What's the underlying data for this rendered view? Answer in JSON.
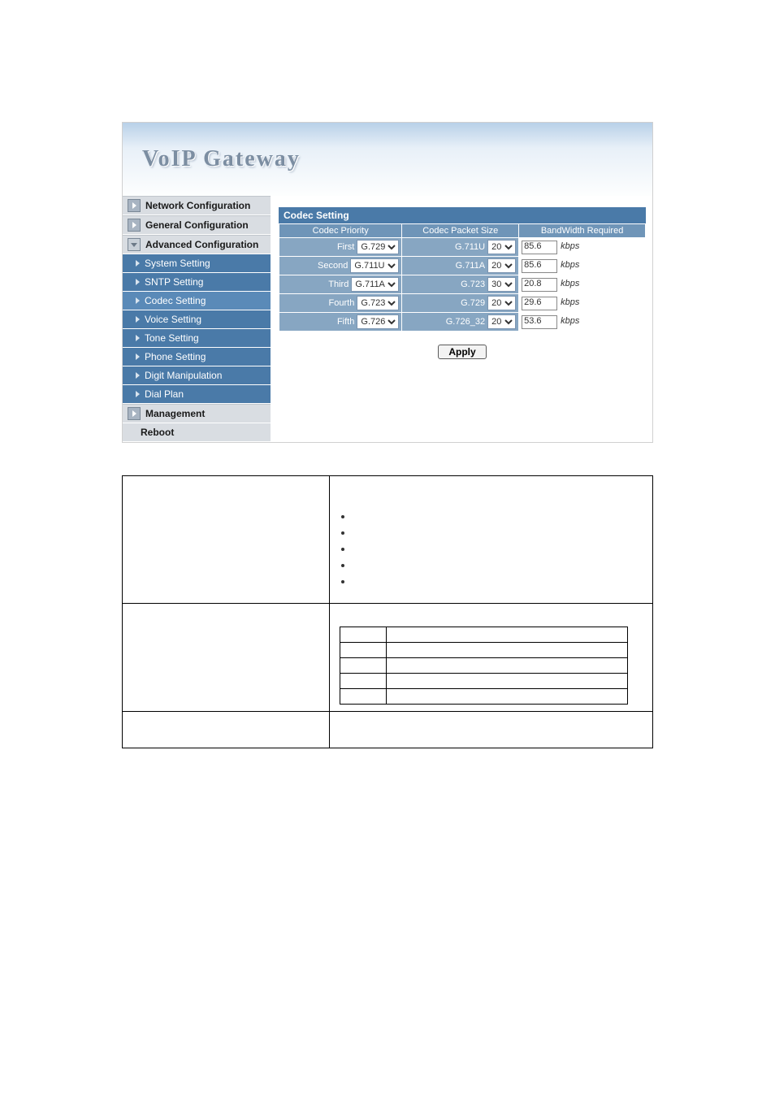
{
  "banner": {
    "title": "VoIP  Gateway"
  },
  "sidebar": {
    "top": [
      {
        "label": "Network Configuration",
        "open": false
      },
      {
        "label": "General Configuration",
        "open": false
      },
      {
        "label": "Advanced Configuration",
        "open": true
      }
    ],
    "subs": [
      {
        "label": "System Setting",
        "active": false
      },
      {
        "label": "SNTP Setting",
        "active": false
      },
      {
        "label": "Codec Setting",
        "active": true
      },
      {
        "label": "Voice Setting",
        "active": false
      },
      {
        "label": "Tone Setting",
        "active": false
      },
      {
        "label": "Phone Setting",
        "active": false
      },
      {
        "label": "Digit Manipulation",
        "active": false
      },
      {
        "label": "Dial Plan",
        "active": false
      }
    ],
    "bottom": [
      {
        "label": "Management",
        "hasIcon": true
      },
      {
        "label": "Reboot",
        "hasIcon": false
      }
    ]
  },
  "panel": {
    "title": "Codec Setting",
    "headers": [
      "Codec Priority",
      "Codec Packet Size",
      "BandWidth Required"
    ],
    "rows": [
      {
        "ord": "First",
        "codec": "G.729",
        "pkt_label": "G.711U",
        "pkt": "20",
        "bw": "85.6"
      },
      {
        "ord": "Second",
        "codec": "G.711U",
        "pkt_label": "G.711A",
        "pkt": "20",
        "bw": "85.6"
      },
      {
        "ord": "Third",
        "codec": "G.711A",
        "pkt_label": "G.723",
        "pkt": "30",
        "bw": "20.8"
      },
      {
        "ord": "Fourth",
        "codec": "G.723",
        "pkt_label": "G.729",
        "pkt": "20",
        "bw": "29.6"
      },
      {
        "ord": "Fifth",
        "codec": "G.726",
        "pkt_label": "G.726_32",
        "pkt": "20",
        "bw": "53.6"
      }
    ],
    "kbps": "kbps",
    "apply": "Apply"
  },
  "colors": {
    "banner_text": "#7c8ea2",
    "side_top_bg": "#d9dde2",
    "side_sub_bg": "#4a7aa8",
    "panel_title_bg": "#4a7aa8",
    "th_bg": "#6f95b8",
    "td_bg": "#87a6c2"
  }
}
